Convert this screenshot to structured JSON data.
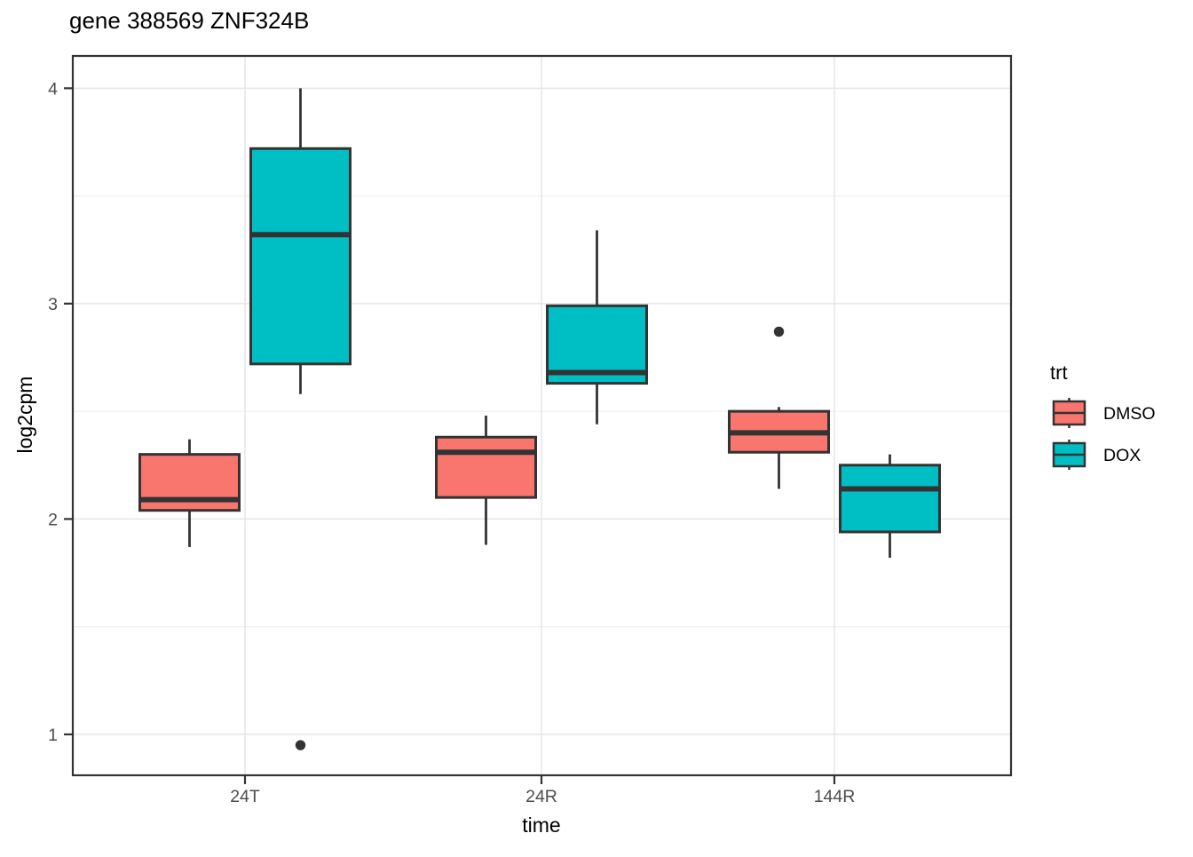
{
  "title": "gene 388569 ZNF324B",
  "x_axis": {
    "label": "time",
    "tick_labels": [
      "24T",
      "24R",
      "144R"
    ]
  },
  "y_axis": {
    "label": "log2cpm",
    "tick_labels": [
      "1",
      "2",
      "3",
      "4"
    ]
  },
  "legend": {
    "title": "trt",
    "entries": [
      {
        "label": "DMSO",
        "color": "#F8766D"
      },
      {
        "label": "DOX",
        "color": "#00BFC4"
      }
    ]
  },
  "colors": {
    "dmso_fill": "#F8766D",
    "dox_fill": "#00BFC4",
    "box_outline": "#333333",
    "panel_border": "#333333",
    "grid_major": "#E6E6E6",
    "grid_minor": "#EFEFEF",
    "axis_text": "#4D4D4D",
    "outlier": "#333333"
  },
  "chart_data": {
    "type": "boxplot",
    "title": "gene 388569 ZNF324B",
    "xlabel": "time",
    "ylabel": "log2cpm",
    "categories": [
      "24T",
      "24R",
      "144R"
    ],
    "ylim": [
      0.81,
      4.15
    ],
    "y_major_ticks": [
      1,
      2,
      3,
      4
    ],
    "y_minor_ticks": [
      1.5,
      2.5,
      3.5
    ],
    "grid": true,
    "legend_title": "trt",
    "legend_position": "right",
    "series": [
      {
        "name": "DMSO",
        "color": "#F8766D",
        "boxes": [
          {
            "category": "24T",
            "whisker_low": 1.87,
            "q1": 2.04,
            "median": 2.09,
            "q3": 2.3,
            "whisker_high": 2.37,
            "outliers": []
          },
          {
            "category": "24R",
            "whisker_low": 1.88,
            "q1": 2.1,
            "median": 2.31,
            "q3": 2.38,
            "whisker_high": 2.48,
            "outliers": []
          },
          {
            "category": "144R",
            "whisker_low": 2.14,
            "q1": 2.31,
            "median": 2.4,
            "q3": 2.5,
            "whisker_high": 2.52,
            "outliers": [
              2.87
            ]
          }
        ]
      },
      {
        "name": "DOX",
        "color": "#00BFC4",
        "boxes": [
          {
            "category": "24T",
            "whisker_low": 2.58,
            "q1": 2.72,
            "median": 3.32,
            "q3": 3.72,
            "whisker_high": 4.0,
            "outliers": [
              0.95
            ]
          },
          {
            "category": "24R",
            "whisker_low": 2.44,
            "q1": 2.63,
            "median": 2.68,
            "q3": 2.99,
            "whisker_high": 3.34,
            "outliers": []
          },
          {
            "category": "144R",
            "whisker_low": 1.82,
            "q1": 1.94,
            "median": 2.14,
            "q3": 2.25,
            "whisker_high": 2.3,
            "outliers": []
          }
        ]
      }
    ]
  }
}
